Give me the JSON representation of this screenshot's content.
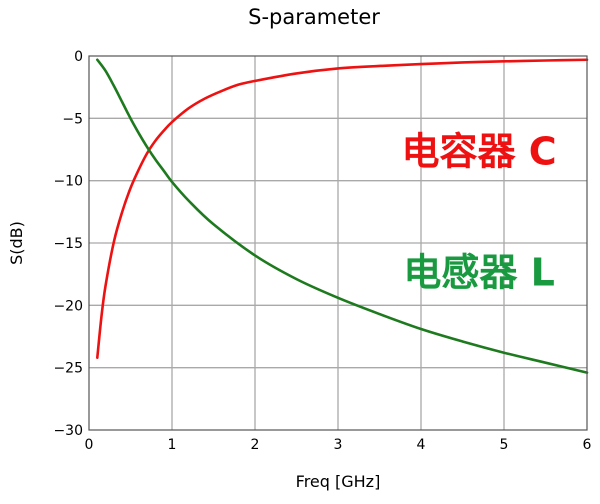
{
  "chart_data": {
    "type": "line",
    "title": "S-parameter",
    "xlabel": "Freq [GHz]",
    "ylabel": "S(dB)",
    "xlim": [
      0,
      6
    ],
    "ylim": [
      -30,
      0
    ],
    "x_ticks": [
      0,
      1,
      2,
      3,
      4,
      5,
      6
    ],
    "y_ticks": [
      0,
      -5,
      -10,
      -15,
      -20,
      -25,
      -30
    ],
    "x_tick_labels": [
      "0",
      "1",
      "2",
      "3",
      "4",
      "5",
      "6"
    ],
    "y_tick_labels": [
      "0",
      "−5",
      "−10",
      "−15",
      "−20",
      "−25",
      "−30"
    ],
    "grid": true,
    "series": [
      {
        "name": "电容器 C",
        "color": "#ee1111",
        "x": [
          0.1,
          0.15,
          0.2,
          0.3,
          0.4,
          0.5,
          0.6,
          0.7,
          0.8,
          0.9,
          1.0,
          1.2,
          1.4,
          1.6,
          1.8,
          2.0,
          2.5,
          3.0,
          3.5,
          4.0,
          4.5,
          5.0,
          5.5,
          6.0
        ],
        "y": [
          -24.2,
          -20.9,
          -18.4,
          -14.9,
          -12.5,
          -10.6,
          -9.1,
          -7.8,
          -6.8,
          -6.0,
          -5.3,
          -4.2,
          -3.4,
          -2.8,
          -2.3,
          -2.0,
          -1.4,
          -1.0,
          -0.8,
          -0.65,
          -0.52,
          -0.43,
          -0.36,
          -0.3
        ]
      },
      {
        "name": "电感器 L",
        "color": "#1e7a1e",
        "x": [
          0.1,
          0.2,
          0.3,
          0.4,
          0.5,
          0.6,
          0.7,
          0.8,
          0.9,
          1.0,
          1.2,
          1.5,
          2.0,
          2.5,
          3.0,
          3.5,
          4.0,
          4.5,
          5.0,
          5.5,
          6.0
        ],
        "y": [
          -0.3,
          -1.2,
          -2.4,
          -3.7,
          -5.0,
          -6.2,
          -7.3,
          -8.3,
          -9.2,
          -10.1,
          -11.6,
          -13.5,
          -16.0,
          -17.9,
          -19.4,
          -20.7,
          -21.9,
          -22.9,
          -23.8,
          -24.6,
          -25.4
        ]
      }
    ],
    "annotations": [
      {
        "text": "电容器 C",
        "color": "#ee1111",
        "x": 4.7,
        "y": -7.6
      },
      {
        "text": "电感器 L",
        "color": "#1a9a40",
        "x": 4.7,
        "y": -17.3
      }
    ]
  }
}
